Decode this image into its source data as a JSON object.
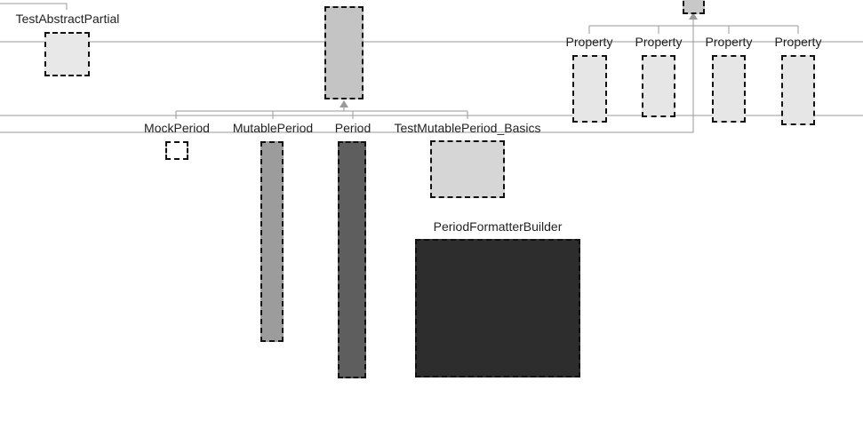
{
  "labels": {
    "test_abstract_partial": "TestAbstractPartial",
    "mock_period": "MockPeriod",
    "mutable_period": "MutablePeriod",
    "period": "Period",
    "test_mutable_period_basics": "TestMutablePeriod_Basics",
    "property_1": "Property",
    "property_2": "Property",
    "property_3": "Property",
    "property_4": "Property",
    "period_formatter_builder": "PeriodFormatterBuilder"
  },
  "colors": {
    "test_abstract_partial": "#e8e8e8",
    "abstract_period_parent": "#c4c4c4",
    "mock_period": "#ffffff",
    "mutable_period": "#9c9c9c",
    "period": "#5e5e5e",
    "test_mutable_period_basics": "#d6d6d6",
    "property_1": "#e6e6e6",
    "property_2": "#e6e6e6",
    "property_3": "#e6e6e6",
    "property_4": "#e6e6e6",
    "property_parent": "#c8c8c8",
    "period_formatter_builder": "#2d2d2d",
    "edge": "#9a9a9a"
  }
}
